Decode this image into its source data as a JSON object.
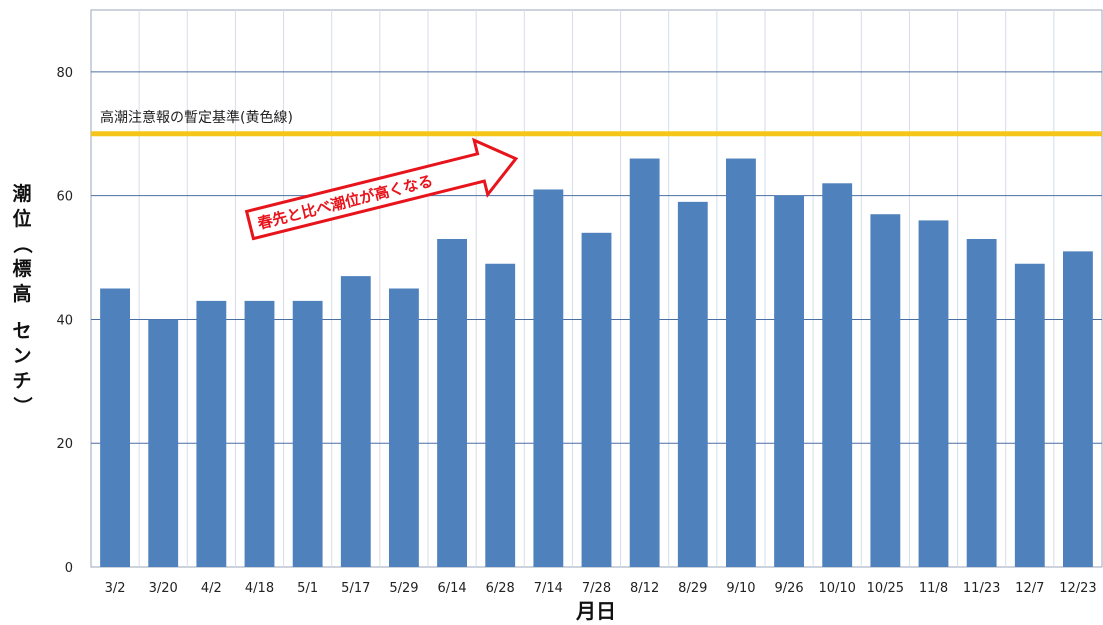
{
  "chart_data": {
    "type": "bar",
    "title": "",
    "xlabel": "月日",
    "ylabel": "潮位（標高　センチ）",
    "categories": [
      "3/2",
      "3/20",
      "4/2",
      "4/18",
      "5/1",
      "5/17",
      "5/29",
      "6/14",
      "6/28",
      "7/14",
      "7/28",
      "8/12",
      "8/29",
      "9/10",
      "9/26",
      "10/10",
      "10/25",
      "11/8",
      "11/23",
      "12/7",
      "12/23"
    ],
    "values": [
      45,
      40,
      43,
      43,
      43,
      47,
      45,
      53,
      49,
      61,
      54,
      66,
      59,
      66,
      60,
      62,
      57,
      56,
      53,
      49,
      51
    ],
    "ylim": [
      0,
      90
    ],
    "yticks": [
      0,
      20,
      40,
      60,
      80
    ],
    "grid": true,
    "reference_line": {
      "value": 70,
      "label": "高潮注意報の暫定基準(黄色線)",
      "color": "#f5c518"
    },
    "annotation": {
      "text": "春先と比べ潮位が高くなる",
      "color": "#e8141c"
    },
    "colors": {
      "bar": "#4f81bd",
      "grid": "#4a6fa5",
      "reference": "#f5c518",
      "annotation": "#e8141c"
    }
  }
}
